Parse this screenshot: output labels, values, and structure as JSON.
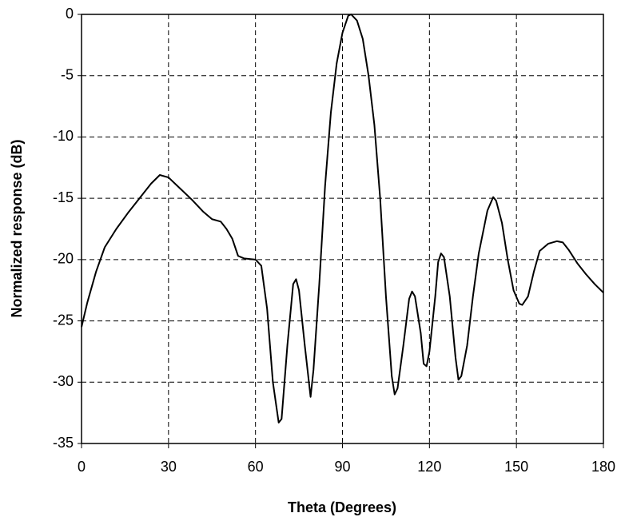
{
  "chart_data": {
    "type": "line",
    "x_label": "Theta (Degrees)",
    "y_label": "Normalized response (dB)",
    "xlim": [
      0,
      180
    ],
    "xticks": [
      0,
      30,
      60,
      90,
      120,
      150,
      180
    ],
    "ylim": [
      -35,
      0
    ],
    "yticks": [
      0,
      -5,
      -10,
      -15,
      -20,
      -25,
      -30,
      -35
    ],
    "grid": true,
    "color": "#000000",
    "x": [
      0,
      2,
      5,
      8,
      12,
      16,
      20,
      24,
      27,
      30,
      34,
      38,
      42,
      45,
      48,
      50,
      52,
      54,
      56,
      60,
      62,
      64,
      66,
      68,
      69,
      71,
      73,
      74,
      75,
      77,
      79,
      80,
      82,
      84,
      86,
      88,
      90,
      92,
      93,
      95,
      97,
      99,
      101,
      103,
      105,
      107,
      108,
      109,
      111,
      113,
      114,
      115,
      117,
      118,
      119,
      120,
      122,
      123,
      124,
      125,
      127,
      129,
      130,
      131,
      133,
      135,
      137,
      140,
      142,
      143,
      145,
      147,
      149,
      151,
      152,
      154,
      156,
      158,
      161,
      164,
      166,
      168,
      171,
      174,
      177,
      180
    ],
    "values": [
      -25.5,
      -23.5,
      -21,
      -19,
      -17.5,
      -16.2,
      -15,
      -13.8,
      -13.1,
      -13.3,
      -14.2,
      -15.1,
      -16.1,
      -16.7,
      -16.9,
      -17.5,
      -18.3,
      -19.7,
      -19.9,
      -20,
      -20.5,
      -24,
      -30,
      -33.3,
      -33,
      -27,
      -22,
      -21.6,
      -22.5,
      -27,
      -31.2,
      -29,
      -22,
      -14,
      -8,
      -4,
      -1.5,
      -0.1,
      0,
      -0.5,
      -2,
      -5,
      -9,
      -15,
      -23,
      -29.5,
      -31,
      -30.5,
      -27,
      -23.2,
      -22.6,
      -23,
      -26,
      -28.5,
      -28.7,
      -27.5,
      -23,
      -20.2,
      -19.5,
      -19.8,
      -23,
      -28,
      -29.8,
      -29.5,
      -27,
      -23,
      -19.5,
      -16,
      -14.9,
      -15.2,
      -17,
      -20,
      -22.5,
      -23.6,
      -23.7,
      -23,
      -21,
      -19.3,
      -18.7,
      -18.5,
      -18.6,
      -19.2,
      -20.3,
      -21.2,
      -22,
      -22.7
    ]
  }
}
